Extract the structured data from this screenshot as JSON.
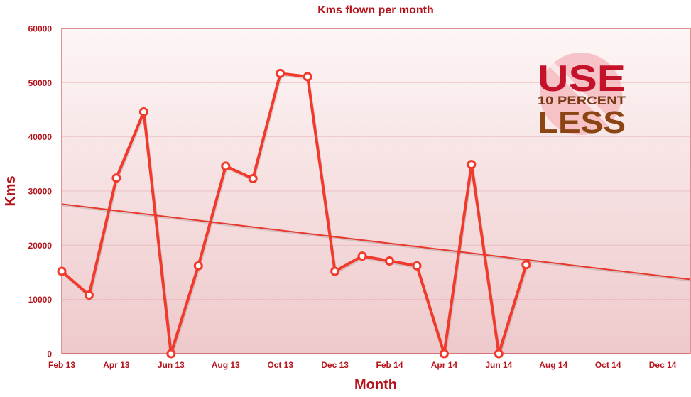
{
  "chart_data": {
    "type": "line",
    "title": "Kms flown per month",
    "xlabel": "Month",
    "ylabel": "Kms",
    "x_start": "Feb 13",
    "x_tick_labels": [
      "Feb 13",
      "Apr 13",
      "Jun 13",
      "Aug 13",
      "Oct 13",
      "Dec 13",
      "Feb 14",
      "Apr 14",
      "Jun 14",
      "Aug 14",
      "Oct 14",
      "Dec 14"
    ],
    "y_ticks": [
      0,
      10000,
      20000,
      30000,
      40000,
      50000,
      60000
    ],
    "ylim": [
      0,
      60000
    ],
    "series": [
      {
        "x": [
          "Feb 13",
          "Mar 13",
          "Apr 13",
          "May 13",
          "Jun 13",
          "Jul 13",
          "Aug 13",
          "Sep 13",
          "Oct 13",
          "Nov 13",
          "Dec 13",
          "Jan 14",
          "Feb 14",
          "Mar 14",
          "Apr 14",
          "May 14",
          "Jun 14",
          "Jul 14"
        ],
        "values": [
          15200,
          10800,
          32400,
          44600,
          0,
          16200,
          34600,
          32300,
          51700,
          51100,
          15200,
          18000,
          17100,
          16200,
          0,
          34900,
          0,
          16400
        ]
      }
    ],
    "trendline": {
      "from": [
        "Feb 13",
        27600
      ],
      "to": [
        "Jan 15",
        13700
      ]
    },
    "grid": true,
    "colors": {
      "line": "#f23a2c",
      "axis": "#b5141c",
      "trend": "#e8392e",
      "bg_top": "#fdf6f6",
      "bg_bottom": "#eec9cb"
    }
  },
  "logo": {
    "line1": "USE",
    "line2": "10 PERCENT",
    "line3": "LESS"
  }
}
